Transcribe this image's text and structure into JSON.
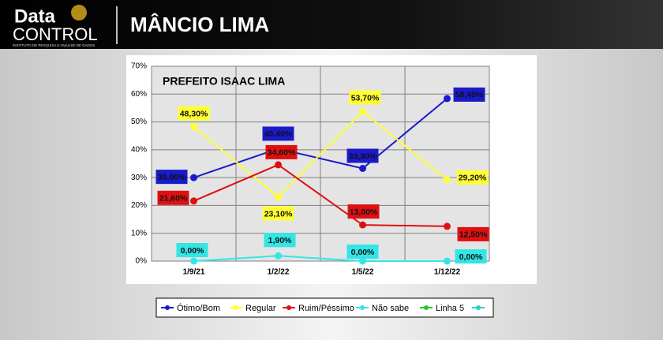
{
  "header": {
    "logo_top": "Data",
    "logo_bottom": "CONTROL",
    "logo_tagline": "INSTITUTO DE PESQUISA E ANÁLISE DE DADOS",
    "title": "MÂNCIO LIMA"
  },
  "chart_data": {
    "type": "line",
    "title": "PREFEITO ISAAC LIMA",
    "categories": [
      "1/9/21",
      "1/2/22",
      "1/5/22",
      "1/12/22"
    ],
    "series": [
      {
        "name": "Ótimo/Bom",
        "color": "#1a1acc",
        "values": [
          30.0,
          40.4,
          33.3,
          58.4
        ],
        "value_labels": [
          "30,00%",
          "40,40%",
          "33,30%",
          "58,40%"
        ]
      },
      {
        "name": "Regular",
        "color": "#ffff33",
        "values": [
          48.3,
          23.1,
          53.7,
          29.2
        ],
        "value_labels": [
          "48,30%",
          "23,10%",
          "53,70%",
          "29,20%"
        ]
      },
      {
        "name": "Ruim/Péssimo",
        "color": "#e01010",
        "values": [
          21.6,
          34.6,
          13.0,
          12.5
        ],
        "value_labels": [
          "21,60%",
          "34,60%",
          "13,00%",
          "12,50%"
        ]
      },
      {
        "name": "Não sabe",
        "color": "#33e6e6",
        "values": [
          0,
          1.9,
          0,
          0
        ],
        "value_labels": [
          "0,00%",
          "1,90%",
          "0,00%",
          "0,00%"
        ]
      },
      {
        "name": "Linha 5",
        "color": "#22cc22",
        "values": [
          null,
          null,
          null,
          null
        ]
      },
      {
        "color": "#33cccc",
        "values": [
          null,
          null,
          null,
          null
        ]
      }
    ],
    "ylim": [
      0,
      70
    ],
    "yticks": [
      {
        "value": 0,
        "label": "0%"
      },
      {
        "value": 10,
        "label": "10%"
      },
      {
        "value": 20,
        "label": "20%"
      },
      {
        "value": 30,
        "label": "30%"
      },
      {
        "value": 40,
        "label": "40%"
      },
      {
        "value": 50,
        "label": "50%"
      },
      {
        "value": 60,
        "label": "60%"
      },
      {
        "value": 70,
        "label": "70%"
      }
    ],
    "grid": true,
    "legend": "bottom"
  }
}
